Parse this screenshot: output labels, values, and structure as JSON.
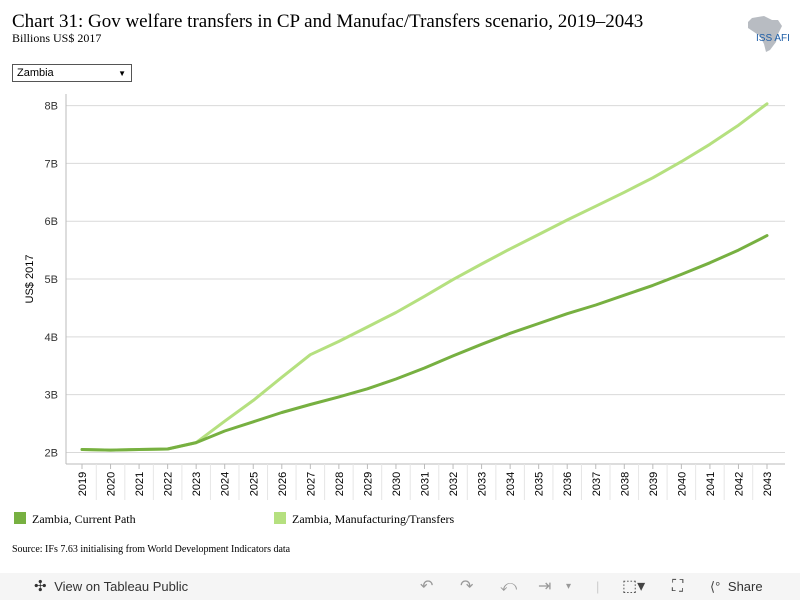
{
  "header": {
    "title": "Chart 31: Gov welfare transfers in CP and Manufac/Transfers scenario, 2019–2043",
    "subtitle": "Billions US$ 2017",
    "logo_text": "ISS AFI"
  },
  "filter": {
    "selected": "Zambia"
  },
  "footer": {
    "source": "Source: IFs 7.63 initialising from World Development Indicators data"
  },
  "toolbar": {
    "view_label": "View on Tableau Public",
    "share_label": "Share",
    "icons": [
      "undo-icon",
      "redo-icon",
      "revert-icon",
      "refresh-icon",
      "download-icon",
      "fullscreen-icon",
      "share-icon"
    ]
  },
  "colors": {
    "current_path": "#77b041",
    "manufacturing": "#b5e07f"
  },
  "chart_data": {
    "type": "line",
    "title": "Chart 31: Gov welfare transfers in CP and Manufac/Transfers scenario, 2019–2043",
    "ylabel": "US$ 2017",
    "xlabel": "",
    "x": [
      "2019",
      "2020",
      "2021",
      "2022",
      "2023",
      "2024",
      "2025",
      "2026",
      "2027",
      "2028",
      "2029",
      "2030",
      "2031",
      "2032",
      "2033",
      "2034",
      "2035",
      "2036",
      "2037",
      "2038",
      "2039",
      "2040",
      "2041",
      "2042",
      "2043"
    ],
    "ylim": [
      1.8,
      8.2
    ],
    "yticks": [
      2,
      3,
      4,
      5,
      6,
      7,
      8
    ],
    "ytick_labels": [
      "2B",
      "3B",
      "4B",
      "5B",
      "6B",
      "7B",
      "8B"
    ],
    "grid": true,
    "legend_position": "bottom",
    "series": [
      {
        "name": "Zambia, Current Path",
        "values": [
          2.05,
          2.04,
          2.05,
          2.06,
          2.17,
          2.37,
          2.53,
          2.69,
          2.83,
          2.96,
          3.1,
          3.27,
          3.46,
          3.67,
          3.87,
          4.06,
          4.23,
          4.4,
          4.55,
          4.72,
          4.89,
          5.08,
          5.28,
          5.5,
          5.75
        ]
      },
      {
        "name": "Zambia, Manufacturing/Transfers",
        "values": [
          2.05,
          2.04,
          2.05,
          2.06,
          2.17,
          2.54,
          2.9,
          3.3,
          3.69,
          3.92,
          4.17,
          4.42,
          4.7,
          4.99,
          5.26,
          5.52,
          5.77,
          6.02,
          6.26,
          6.5,
          6.75,
          7.03,
          7.33,
          7.66,
          8.03
        ]
      }
    ]
  }
}
